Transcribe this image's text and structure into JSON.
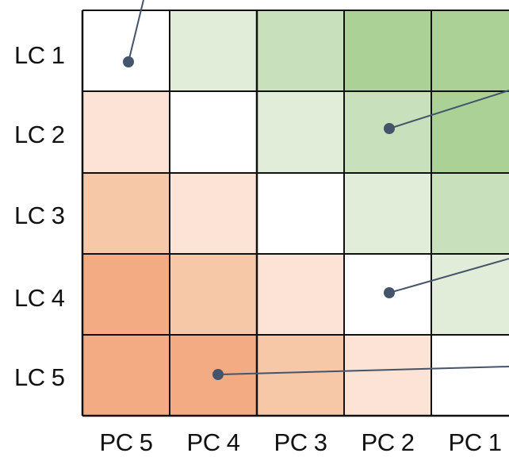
{
  "row_labels": [
    "LC 1",
    "LC 2",
    "LC 3",
    "LC 4",
    "LC 5"
  ],
  "column_labels": [
    "PC 5",
    "PC 4",
    "PC 3",
    "PC 2",
    "PC 1"
  ],
  "colors": {
    "grid_line": "#111111",
    "white": "#ffffff",
    "green_light": "#e2edd9",
    "green_mid": "#c9e0bd",
    "green_dark": "#acd197",
    "orange_light": "#fce3d6",
    "orange_mid": "#f7c8a8",
    "orange_dark": "#f2ab82",
    "marker": "#44546a"
  },
  "cells": [
    [
      "white",
      "green_light",
      "green_mid",
      "green_dark",
      "green_dark"
    ],
    [
      "orange_light",
      "white",
      "green_light",
      "green_mid",
      "green_dark"
    ],
    [
      "orange_mid",
      "orange_light",
      "white",
      "green_light",
      "green_mid"
    ],
    [
      "orange_dark",
      "orange_mid",
      "orange_light",
      "white",
      "green_light"
    ],
    [
      "orange_dark",
      "orange_dark",
      "orange_mid",
      "orange_light",
      "white"
    ]
  ],
  "markers": [
    {
      "row": 0,
      "col": 0
    },
    {
      "row": 1,
      "col": 3
    },
    {
      "row": 3,
      "col": 3
    },
    {
      "row": 4,
      "col": 1
    }
  ]
}
